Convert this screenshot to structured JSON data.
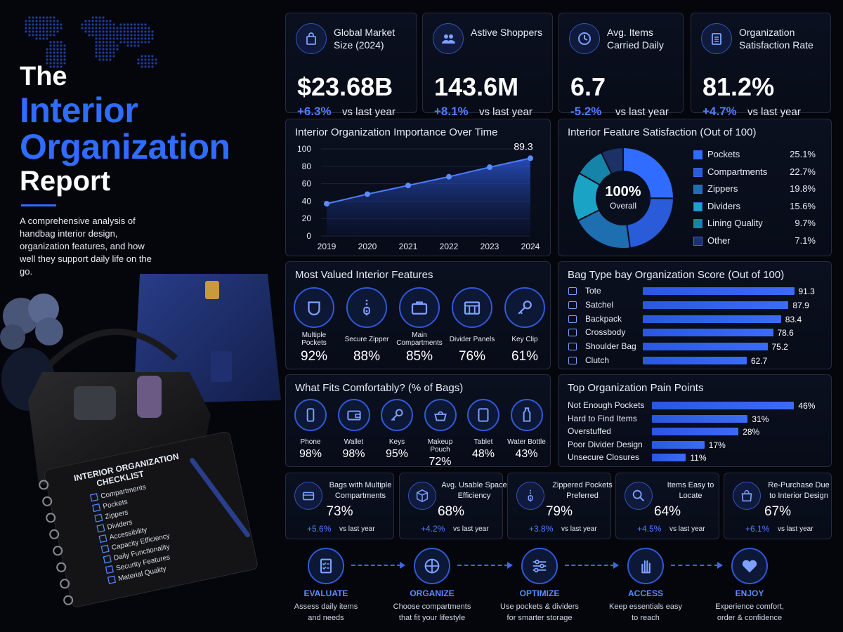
{
  "header": {
    "title_the": "The",
    "title_line1": "Interior",
    "title_line2": "Organization",
    "title_line3": "Report",
    "description": "A comprehensive analysis of handbag interior design, organization features, and how well they support daily life on the go."
  },
  "checklist": {
    "title": "INTERIOR ORGANIZATION CHECKLIST",
    "items": [
      "Compartments",
      "Pockets",
      "Zippers",
      "Dividers",
      "Accessibility",
      "Capacity Efficiency",
      "Daily Functionality",
      "Security Features",
      "Material Quality"
    ]
  },
  "kpis": [
    {
      "label": "Global Market Size (2024)",
      "value": "$23.68B",
      "change": "+6.3%",
      "vs": "vs last year",
      "icon": "shopping-bag-icon"
    },
    {
      "label": "Astive Shoppers",
      "value": "143.6M",
      "change": "+8.1%",
      "vs": "vs last year",
      "icon": "users-icon"
    },
    {
      "label": "Avg. Items Carried Daily",
      "value": "6.7",
      "change": "-5.2%",
      "vs": "vs last year",
      "icon": "clock-icon"
    },
    {
      "label": "Organization Satisfaction Rate",
      "value": "81.2%",
      "change": "+4.7%",
      "vs": "vs last year",
      "icon": "clipboard-icon"
    }
  ],
  "line_chart": {
    "title": "Interior Organization Importance Over Time",
    "peak_label": "89.3"
  },
  "donut": {
    "title": "Interior Feature Satisfaction (Out of 100)",
    "center_value": "100%",
    "center_label": "Overall"
  },
  "features": {
    "title": "Most Valued Interior Features",
    "items": [
      {
        "label": "Multiple Pockets",
        "value": "92%",
        "icon": "pocket-icon"
      },
      {
        "label": "Secure Zipper",
        "value": "88%",
        "icon": "zipper-icon"
      },
      {
        "label": "Main Compartments",
        "value": "85%",
        "icon": "briefcase-icon"
      },
      {
        "label": "Divider Panels",
        "value": "76%",
        "icon": "divider-icon"
      },
      {
        "label": "Key Clip",
        "value": "61%",
        "icon": "key-icon"
      }
    ]
  },
  "bag_types": {
    "title": "Bag Type bay Organization Score (Out of 100)"
  },
  "fits": {
    "title": "What Fits Comfortably? (% of Bags)",
    "items": [
      {
        "label": "Phone",
        "value": "98%",
        "icon": "phone-icon"
      },
      {
        "label": "Wallet",
        "value": "98%",
        "icon": "wallet-icon"
      },
      {
        "label": "Keys",
        "value": "95%",
        "icon": "key-icon"
      },
      {
        "label": "Makeup Pouch",
        "value": "72%",
        "icon": "pouch-icon"
      },
      {
        "label": "Tablet",
        "value": "48%",
        "icon": "tablet-icon"
      },
      {
        "label": "Water Bottle",
        "value": "43%",
        "icon": "bottle-icon"
      }
    ]
  },
  "pain_points": {
    "title": "Top Organization Pain Points"
  },
  "small_kpis": [
    {
      "label": "Bags with Multiple Compartments",
      "value": "73%",
      "change": "+5.6%",
      "vs": "vs last year",
      "icon": "compartment-icon"
    },
    {
      "label": "Avg. Usable Space Efficiency",
      "value": "68%",
      "change": "+4.2%",
      "vs": "vs last year",
      "icon": "box-icon"
    },
    {
      "label": "Zippered Pockets Preferred",
      "value": "79%",
      "change": "+3.8%",
      "vs": "vs last year",
      "icon": "zipper-icon"
    },
    {
      "label": "Items Easy to Locate",
      "value": "64%",
      "change": "+4.5%",
      "vs": "vs last year",
      "icon": "search-icon"
    },
    {
      "label": "Re-Purchase Due to Interior Design",
      "value": "67%",
      "change": "+6.1%",
      "vs": "vs last year",
      "icon": "bag-icon"
    }
  ],
  "process": [
    {
      "title": "EVALUATE",
      "desc1": "Assess daily items",
      "desc2": "and needs",
      "icon": "checklist-icon"
    },
    {
      "title": "ORGANIZE",
      "desc1": "Choose compartments",
      "desc2": "that fit your lifestyle",
      "icon": "grid-icon"
    },
    {
      "title": "OPTIMIZE",
      "desc1": "Use pockets & dividers",
      "desc2": "for smarter storage",
      "icon": "sliders-icon"
    },
    {
      "title": "ACCESS",
      "desc1": "Keep essentials easy",
      "desc2": "to reach",
      "icon": "hand-icon"
    },
    {
      "title": "ENJOY",
      "desc1": "Experience comfort,",
      "desc2": "order & confidence",
      "icon": "heart-icon"
    }
  ],
  "colors": {
    "accent": "#2f6cff",
    "background": "#04060c",
    "card": "#0b1020"
  },
  "chart_data": [
    {
      "type": "area",
      "title": "Interior Organization Importance Over Time",
      "x": [
        "2019",
        "2020",
        "2021",
        "2022",
        "2023",
        "2024"
      ],
      "values": [
        37,
        48,
        58,
        68,
        79,
        89.3
      ],
      "ylim": [
        0,
        100
      ],
      "yticks": [
        "0",
        "20",
        "40",
        "60",
        "80",
        "100"
      ],
      "grid": true
    },
    {
      "type": "pie",
      "title": "Interior Feature Satisfaction (Out of 100)",
      "labels": [
        "Pockets",
        "Compartments",
        "Zippers",
        "Dividers",
        "Lining Quality",
        "Other"
      ],
      "values": [
        25.1,
        22.7,
        19.8,
        15.6,
        9.7,
        7.1
      ],
      "value_labels": [
        "25.1%",
        "22.7%",
        "19.8%",
        "15.6%",
        "9.7%",
        "7.1%"
      ],
      "colors": [
        "#2f6cff",
        "#2a5bd8",
        "#1e6fb0",
        "#1aa3c4",
        "#1684a8",
        "#1c3266"
      ],
      "legend": "right"
    },
    {
      "type": "bar",
      "title": "Bag Type bay Organization Score (Out of 100)",
      "categories": [
        "Tote",
        "Satchel",
        "Backpack",
        "Crossbody",
        "Shoulder Bag",
        "Clutch"
      ],
      "values": [
        91.3,
        87.9,
        83.4,
        78.6,
        75.2,
        62.7
      ],
      "value_labels": [
        "91.3",
        "87.9",
        "83.4",
        "78.6",
        "75.2",
        "62.7"
      ],
      "xlim": [
        0,
        100
      ]
    },
    {
      "type": "bar",
      "title": "Top Organization Pain Points",
      "categories": [
        "Not Enough Pockets",
        "Hard to Find Items",
        "Overstuffed",
        "Poor Divider Design",
        "Unsecure Closures"
      ],
      "values": [
        46,
        31,
        28,
        17,
        11
      ],
      "value_labels": [
        "46%",
        "31%",
        "28%",
        "17%",
        "11%"
      ],
      "xlim": [
        0,
        50
      ]
    }
  ]
}
